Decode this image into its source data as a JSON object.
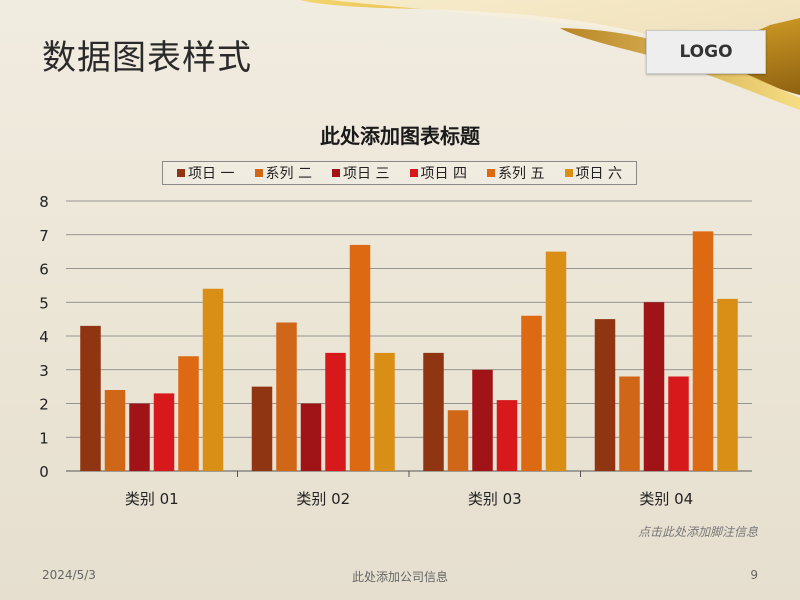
{
  "slide": {
    "title": "数据图表样式",
    "logo": "LOGO",
    "footnote": "点击此处添加脚注信息",
    "footer_date": "2024/5/3",
    "footer_company": "此处添加公司信息",
    "page_number": "9"
  },
  "colors": {
    "accent_gold": "#d9a21f",
    "grid": "#7a7a7a"
  },
  "chart_data": {
    "type": "bar",
    "title": "此处添加图表标题",
    "categories": [
      "类别 01",
      "类别 02",
      "类别 03",
      "类别 04"
    ],
    "series": [
      {
        "name": "项日 一",
        "color": "#8f3512",
        "values": [
          4.3,
          2.5,
          3.5,
          4.5
        ]
      },
      {
        "name": "系列 二",
        "color": "#cf6618",
        "values": [
          2.4,
          4.4,
          1.8,
          2.8
        ]
      },
      {
        "name": "项日 三",
        "color": "#a01417",
        "values": [
          2.0,
          2.0,
          3.0,
          5.0
        ]
      },
      {
        "name": "项日 四",
        "color": "#d7191c",
        "values": [
          2.3,
          3.5,
          2.1,
          2.8
        ]
      },
      {
        "name": "系列 五",
        "color": "#dd6a12",
        "values": [
          3.4,
          6.7,
          4.6,
          7.1
        ]
      },
      {
        "name": "项日 六",
        "color": "#d98e16",
        "values": [
          5.4,
          3.5,
          6.5,
          5.1
        ]
      }
    ],
    "ylim": [
      0,
      8
    ],
    "yticks": [
      "0",
      "1",
      "2",
      "3",
      "4",
      "5",
      "6",
      "7",
      "8"
    ],
    "grid": true,
    "legend_position": "top"
  }
}
